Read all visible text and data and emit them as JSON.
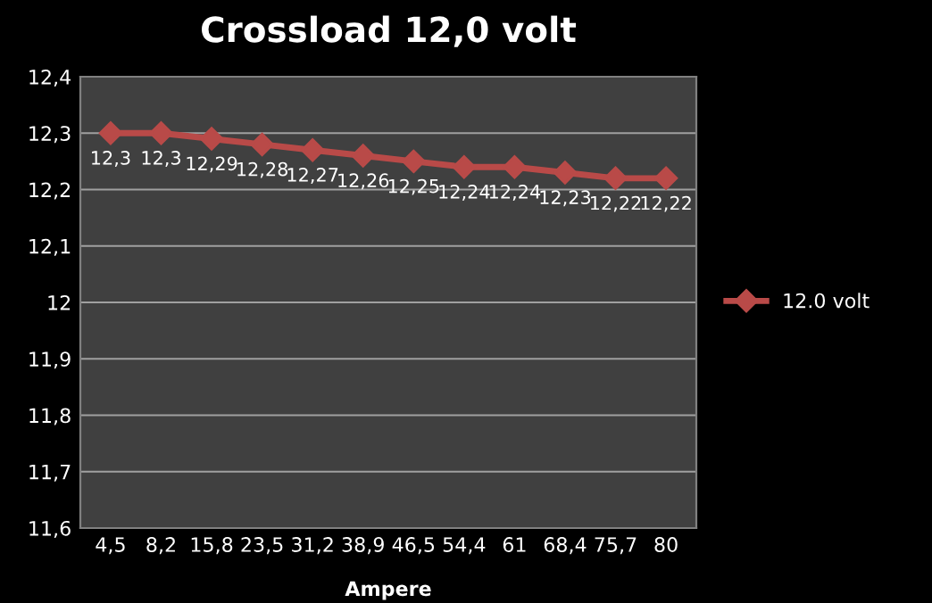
{
  "chart_data": {
    "type": "line",
    "title": "Crossload 12,0 volt",
    "xlabel": "Ampere",
    "categories": [
      "4,5",
      "8,2",
      "15,8",
      "23,5",
      "31,2",
      "38,9",
      "46,5",
      "54,4",
      "61",
      "68,4",
      "75,7",
      "80"
    ],
    "series": [
      {
        "name": "12.0 volt",
        "color": "#b94a48",
        "values": [
          12.3,
          12.3,
          12.29,
          12.28,
          12.27,
          12.26,
          12.25,
          12.24,
          12.24,
          12.23,
          12.22,
          12.22
        ],
        "value_labels": [
          "12,3",
          "12,3",
          "12,29",
          "12,28",
          "12,27",
          "12,26",
          "12,25",
          "12,24",
          "12,24",
          "12,23",
          "12,22",
          "12,22"
        ]
      }
    ],
    "ylim": [
      11.6,
      12.4
    ],
    "yticks": [
      {
        "value": 11.6,
        "label": "11,6"
      },
      {
        "value": 11.7,
        "label": "11,7"
      },
      {
        "value": 11.8,
        "label": "11,8"
      },
      {
        "value": 11.9,
        "label": "11,9"
      },
      12,
      {
        "value": 12.1,
        "label": "12,1"
      },
      {
        "value": 12.2,
        "label": "12,2"
      },
      {
        "value": 12.3,
        "label": "12,3"
      },
      {
        "value": 12.4,
        "label": "12,4"
      }
    ],
    "grid": "y",
    "legend": "right",
    "marker": "diamond",
    "line_style": "solid"
  }
}
